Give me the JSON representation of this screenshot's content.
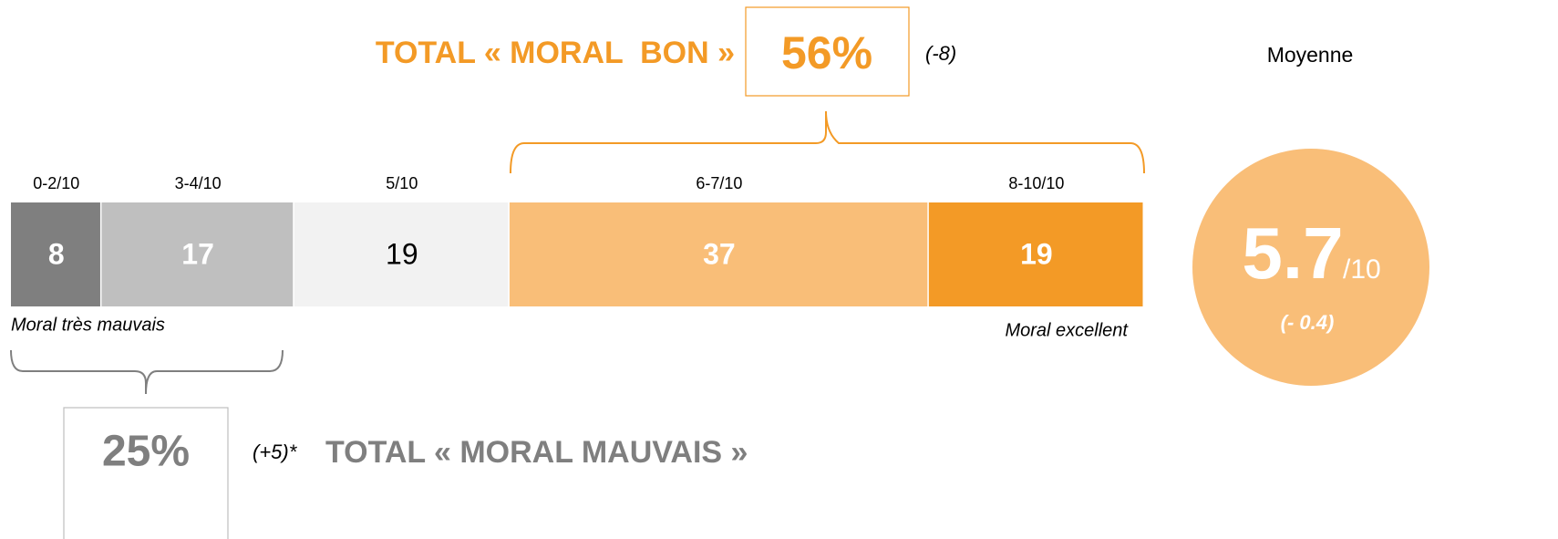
{
  "chart_data": {
    "type": "stacked-bar-horizontal",
    "xlim": [
      0,
      100
    ],
    "series": [
      {
        "name": "0-2/10",
        "color": "#7f7f7f",
        "label_color": "#ffffff",
        "values": [
          8
        ]
      },
      {
        "name": "3-4/10",
        "color": "#bfbfbf",
        "label_color": "#ffffff",
        "values": [
          17
        ]
      },
      {
        "name": "5/10",
        "color": "#f2f2f2",
        "label_color": "#000000",
        "values": [
          19
        ]
      },
      {
        "name": "6-7/10",
        "color": "#f9be78",
        "label_color": "#ffffff",
        "values": [
          37
        ]
      },
      {
        "name": "8-10/10",
        "color": "#f39a26",
        "label_color": "#ffffff",
        "values": [
          19
        ]
      }
    ],
    "low_label": "Moral très mauvais",
    "high_label": "Moral excellent",
    "total_good": {
      "label": "TOTAL « MORAL  BON »",
      "value_label": "56%",
      "change": "(-8)"
    },
    "total_bad": {
      "label": "TOTAL « MORAL MAUVAIS »",
      "value_label": "25%",
      "change": "(+5)*"
    },
    "average": {
      "title": "Moyenne",
      "value_label": "5.7",
      "scale": "/10",
      "change": "(- 0.4)"
    }
  }
}
